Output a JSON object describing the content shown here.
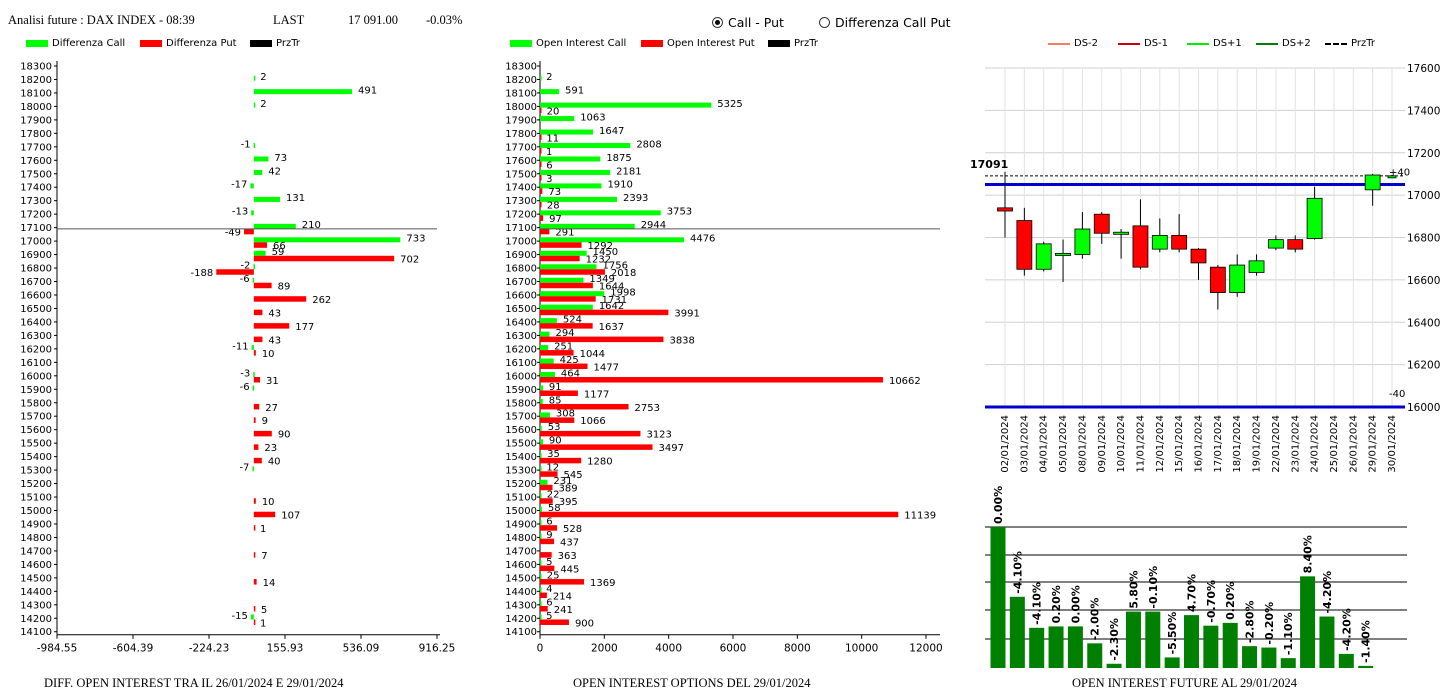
{
  "header": {
    "title": "Analisi future : DAX INDEX - 08:39",
    "last_label": "LAST",
    "last_value": "17 091.00",
    "change": "-0.03%",
    "radio_call_put": "Call - Put",
    "radio_diff": "Differenza Call Put"
  },
  "colors": {
    "green": "#00ff00",
    "red": "#ff0000",
    "dark_green": "#008000",
    "blue": "#0000cc",
    "dark_red": "#cc0000"
  },
  "legends": {
    "diff": [
      "Differenza Call",
      "Differenza Put",
      "PrzTr"
    ],
    "oi": [
      "Open Interest Call",
      "Open Interest Put",
      "PrzTr"
    ],
    "future": [
      "DS-2",
      "DS-1",
      "DS+1",
      "DS+2",
      "PrzTr"
    ]
  },
  "captions": {
    "diff": "DIFF. OPEN INTEREST TRA IL 26/01/2024 E 29/01/2024",
    "oi": "OPEN INTEREST OPTIONS DEL 29/01/2024",
    "future": "OPEN INTEREST FUTURE AL 29/01/2024"
  },
  "chart_data": [
    {
      "type": "bar",
      "orientation": "horizontal",
      "strikes": [
        18300,
        18200,
        18100,
        18000,
        17900,
        17800,
        17700,
        17600,
        17500,
        17400,
        17300,
        17200,
        17100,
        17000,
        16900,
        16800,
        16700,
        16600,
        16500,
        16400,
        16300,
        16200,
        16100,
        16000,
        15900,
        15800,
        15700,
        15600,
        15500,
        15400,
        15300,
        15200,
        15100,
        15000,
        14900,
        14800,
        14700,
        14600,
        14500,
        14400,
        14300,
        14200,
        14100
      ],
      "series": [
        {
          "name": "Differenza Call",
          "values": [
            null,
            2,
            491,
            2,
            null,
            null,
            -1,
            73,
            42,
            -17,
            131,
            -13,
            210,
            733,
            59,
            -2,
            -6,
            null,
            null,
            null,
            null,
            -11,
            null,
            -3,
            -6,
            null,
            null,
            null,
            null,
            null,
            -7,
            null,
            null,
            null,
            null,
            null,
            null,
            null,
            null,
            null,
            null,
            -15,
            null
          ]
        },
        {
          "name": "Differenza Put",
          "values": [
            null,
            null,
            null,
            null,
            null,
            null,
            null,
            null,
            null,
            null,
            null,
            null,
            -49,
            66,
            702,
            -188,
            89,
            262,
            43,
            177,
            43,
            10,
            null,
            31,
            null,
            27,
            9,
            90,
            23,
            40,
            null,
            null,
            10,
            107,
            1,
            null,
            7,
            null,
            14,
            null,
            5,
            1,
            null
          ]
        }
      ],
      "xticks": [
        "-984.55",
        "-604.39",
        "-224.23",
        "155.93",
        "536.09",
        "916.25"
      ],
      "xlim": [
        -984.55,
        916.25
      ],
      "przTr": 17091
    },
    {
      "type": "bar",
      "orientation": "horizontal",
      "strikes": [
        18300,
        18200,
        18100,
        18000,
        17900,
        17800,
        17700,
        17600,
        17500,
        17400,
        17300,
        17200,
        17100,
        17000,
        16900,
        16800,
        16700,
        16600,
        16500,
        16400,
        16300,
        16200,
        16100,
        16000,
        15900,
        15800,
        15700,
        15600,
        15500,
        15400,
        15300,
        15200,
        15100,
        15000,
        14900,
        14800,
        14700,
        14600,
        14500,
        14400,
        14300,
        14200,
        14100
      ],
      "series": [
        {
          "name": "Open Interest Call",
          "values": [
            null,
            2,
            591,
            5325,
            1063,
            1647,
            2808,
            1875,
            2181,
            1910,
            2393,
            3753,
            2944,
            4476,
            1450,
            1756,
            1349,
            1998,
            1642,
            524,
            294,
            251,
            425,
            464,
            91,
            85,
            308,
            53,
            90,
            35,
            12,
            231,
            22,
            58,
            6,
            9,
            null,
            5,
            25,
            4,
            6,
            5,
            null
          ]
        },
        {
          "name": "Open Interest Put",
          "values": [
            null,
            null,
            null,
            20,
            null,
            11,
            1,
            6,
            3,
            73,
            28,
            97,
            291,
            1292,
            1232,
            2018,
            1644,
            1731,
            3991,
            1637,
            3838,
            1044,
            1477,
            10662,
            1177,
            2753,
            1066,
            3123,
            3497,
            1280,
            545,
            389,
            395,
            11139,
            528,
            437,
            363,
            445,
            1369,
            214,
            241,
            900,
            null
          ]
        }
      ],
      "xticks": [
        "0",
        "2000",
        "4000",
        "6000",
        "8000",
        "10000",
        "12000"
      ],
      "xlim": [
        0,
        12000
      ],
      "przTr": 17091
    },
    {
      "type": "candlestick",
      "x": [
        "02/01/2024",
        "03/01/2024",
        "04/01/2024",
        "05/01/2024",
        "08/01/2024",
        "09/01/2024",
        "10/01/2024",
        "11/01/2024",
        "12/01/2024",
        "15/01/2024",
        "16/01/2024",
        "17/01/2024",
        "18/01/2024",
        "19/01/2024",
        "22/01/2024",
        "23/01/2024",
        "24/01/2024",
        "25/01/2024",
        "26/01/2024",
        "29/01/2024",
        "30/01/2024"
      ],
      "candles": [
        {
          "o": 16940,
          "c": 16925,
          "h": 17110,
          "l": 16800
        },
        {
          "o": 16880,
          "c": 16650,
          "h": 16940,
          "l": 16620
        },
        {
          "o": 16650,
          "c": 16770,
          "h": 16780,
          "l": 16640
        },
        {
          "o": 16715,
          "c": 16725,
          "h": 16790,
          "l": 16590
        },
        {
          "o": 16720,
          "c": 16840,
          "h": 16920,
          "l": 16700
        },
        {
          "o": 16910,
          "c": 16820,
          "h": 16920,
          "l": 16770
        },
        {
          "o": 16815,
          "c": 16825,
          "h": 16840,
          "l": 16700
        },
        {
          "o": 16855,
          "c": 16660,
          "h": 16980,
          "l": 16650
        },
        {
          "o": 16745,
          "c": 16810,
          "h": 16890,
          "l": 16730
        },
        {
          "o": 16810,
          "c": 16745,
          "h": 16910,
          "l": 16730
        },
        {
          "o": 16745,
          "c": 16680,
          "h": 16750,
          "l": 16600
        },
        {
          "o": 16660,
          "c": 16540,
          "h": 16670,
          "l": 16460
        },
        {
          "o": 16540,
          "c": 16670,
          "h": 16720,
          "l": 16520
        },
        {
          "o": 16635,
          "c": 16690,
          "h": 16720,
          "l": 16620
        },
        {
          "o": 16750,
          "c": 16790,
          "h": 16810,
          "l": 16740
        },
        {
          "o": 16790,
          "c": 16745,
          "h": 16810,
          "l": 16730
        },
        {
          "o": 16795,
          "c": 16985,
          "h": 17040,
          "l": 16790
        },
        {
          "o": null,
          "c": null,
          "h": null,
          "l": null
        },
        {
          "o": null,
          "c": null,
          "h": null,
          "l": null
        },
        {
          "o": 17025,
          "c": 17095,
          "h": 17100,
          "l": 16950
        },
        {
          "o": 17087,
          "c": 17091,
          "h": 17095,
          "l": 17080
        }
      ],
      "yticks": [
        "17600",
        "17400",
        "17200",
        "17000",
        "16800",
        "16600",
        "16400",
        "16200",
        "16000"
      ],
      "ylim": [
        16000,
        17600
      ],
      "przTr": 17091,
      "przTr_label": "17091",
      "ds_upper": 17050,
      "ds_lower": 16000,
      "upper_offset_label": "+40",
      "lower_offset_label": "-40"
    },
    {
      "type": "bar",
      "values": [
        100,
        50.5,
        28.5,
        29.5,
        29.5,
        17.5,
        3,
        40,
        40,
        7.5,
        37.5,
        30,
        32,
        15.5,
        14.5,
        7,
        65,
        36.5,
        10,
        1.5
      ],
      "labels": [
        "0.00%",
        "-4.10%",
        "-4.10%",
        "0.20%",
        "0.00%",
        "-2.00%",
        "-2.30%",
        "5.80%",
        "-0.10%",
        "-5.50%",
        "4.70%",
        "-0.70%",
        "0.20%",
        "-2.80%",
        "-0.20%",
        "-1.10%",
        "8.40%",
        "-4.20%",
        "-4.20%",
        "-1.40%"
      ]
    }
  ]
}
